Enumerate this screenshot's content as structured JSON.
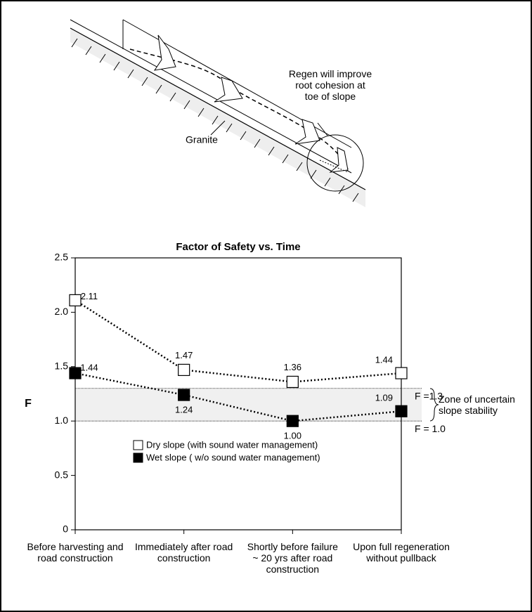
{
  "diagram": {
    "annotation": "Regen will improve root cohesion at toe of slope",
    "rock_label": "Granite"
  },
  "chart_data": {
    "type": "line",
    "title": "Factor of Safety vs. Time",
    "y_label": "F",
    "categories": [
      "Before harvesting and road construction",
      "Immediately after road construction",
      "Shortly before failure ~ 20 yrs after road construction",
      "Upon full regeneration without pullback"
    ],
    "series": [
      {
        "name": "Dry slope (with sound water management)",
        "color": "#ffffff",
        "values": [
          2.11,
          1.47,
          1.36,
          1.44
        ]
      },
      {
        "name": "Wet slope ( w/o sound water management)",
        "color": "#000000",
        "values": [
          1.44,
          1.24,
          1.0,
          1.09
        ],
        "value_labels": [
          "1.44",
          "1.24",
          "1.00",
          "1.09"
        ]
      }
    ],
    "ylim": [
      0,
      2.5
    ],
    "yticks": [
      0,
      0.5,
      {
        "value": 1,
        "label": "1.0"
      },
      1.5,
      {
        "value": 2,
        "label": "2.0"
      },
      2.5
    ],
    "reference_lines": [
      {
        "value": 1.3,
        "label": "F =1.3"
      },
      {
        "value": 1.0,
        "label": "F = 1.0"
      }
    ],
    "band_label": "Zone of uncertain slope stability"
  }
}
